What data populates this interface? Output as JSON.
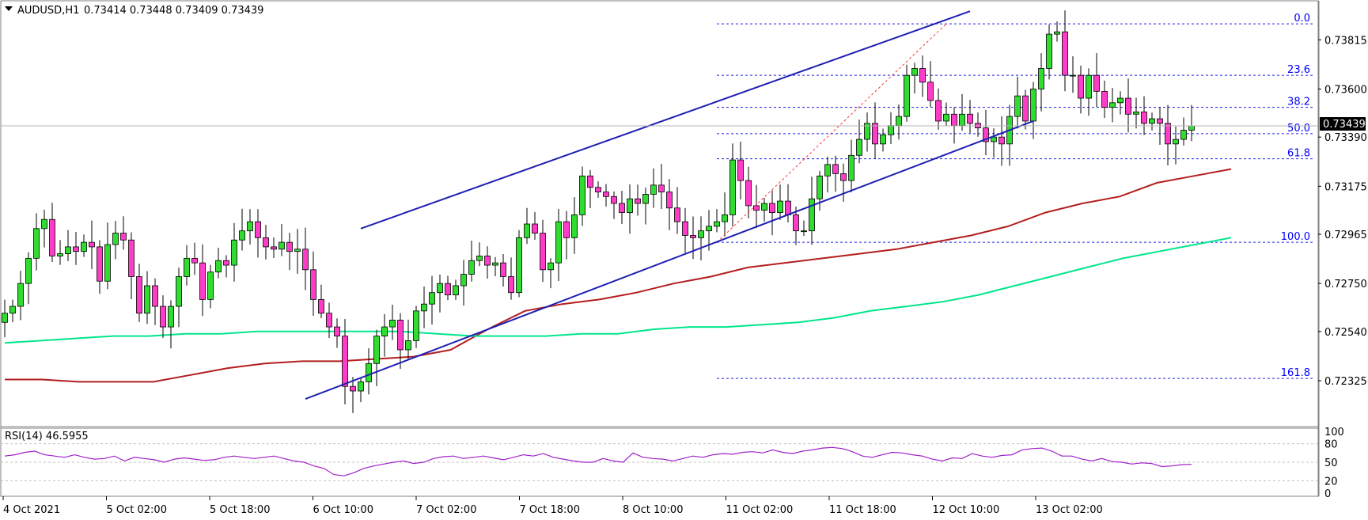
{
  "header": {
    "symbol": "AUDUSD,H1",
    "ohlc": "0.73414 0.73448 0.73409 0.73439"
  },
  "rsi_header": "RSI(14) 46.5955",
  "current_price_label": "0.73439",
  "colors": {
    "bull": "#2fdc2f",
    "bear": "#ff3cc8",
    "channel": "#1f1fb4",
    "ma100": "#b41e1e",
    "ma200": "#00e68c",
    "rsi": "#a020c8",
    "fib": "#1e1ee6",
    "fib_text": "#0000ff",
    "trend": "#ff3232"
  },
  "chart_data": [
    {
      "type": "candlestick",
      "title": "AUDUSD,H1",
      "ylim": [
        0.7219,
        0.7392
      ],
      "price_ticks": [
        "0.73815",
        "0.73600",
        "0.73390",
        "0.73175",
        "0.72965",
        "0.72750",
        "0.72540",
        "0.72325"
      ],
      "x_ticks": [
        "4 Oct 2021",
        "5 Oct 02:00",
        "5 Oct 18:00",
        "6 Oct 10:00",
        "7 Oct 02:00",
        "7 Oct 18:00",
        "8 Oct 10:00",
        "11 Oct 02:00",
        "11 Oct 18:00",
        "12 Oct 10:00",
        "13 Oct 02:00"
      ],
      "current_price": 0.73439,
      "candles_close": [
        0.7262,
        0.7265,
        0.7275,
        0.7286,
        0.7299,
        0.7303,
        0.7287,
        0.7288,
        0.7291,
        0.7289,
        0.7293,
        0.7291,
        0.7276,
        0.7292,
        0.7297,
        0.7294,
        0.7278,
        0.7262,
        0.7274,
        0.7265,
        0.7256,
        0.7265,
        0.7278,
        0.7286,
        0.7284,
        0.7268,
        0.728,
        0.7285,
        0.7283,
        0.7294,
        0.7298,
        0.7302,
        0.7295,
        0.7291,
        0.729,
        0.7293,
        0.7289,
        0.729,
        0.7281,
        0.7268,
        0.7262,
        0.7256,
        0.7252,
        0.723,
        0.7228,
        0.7232,
        0.724,
        0.7252,
        0.7256,
        0.7259,
        0.7246,
        0.725,
        0.7263,
        0.7266,
        0.7271,
        0.7275,
        0.727,
        0.7274,
        0.7279,
        0.7285,
        0.7287,
        0.7283,
        0.7284,
        0.7278,
        0.7271,
        0.7295,
        0.7301,
        0.7297,
        0.7281,
        0.7284,
        0.7302,
        0.7295,
        0.7305,
        0.7322,
        0.7317,
        0.7315,
        0.7313,
        0.731,
        0.7306,
        0.7312,
        0.731,
        0.7314,
        0.7318,
        0.7315,
        0.7308,
        0.7302,
        0.7296,
        0.7295,
        0.7298,
        0.73,
        0.7302,
        0.7305,
        0.7329,
        0.732,
        0.7309,
        0.7307,
        0.731,
        0.7306,
        0.7311,
        0.7305,
        0.7298,
        0.7298,
        0.7312,
        0.7322,
        0.7327,
        0.7323,
        0.732,
        0.7331,
        0.7338,
        0.7345,
        0.7336,
        0.734,
        0.7344,
        0.7348,
        0.7366,
        0.7369,
        0.7363,
        0.7355,
        0.7346,
        0.7349,
        0.7344,
        0.7349,
        0.7345,
        0.7343,
        0.7337,
        0.7339,
        0.7336,
        0.7348,
        0.7357,
        0.7346,
        0.736,
        0.7369,
        0.7384,
        0.7385,
        0.7366,
        0.7366,
        0.7356,
        0.7366,
        0.7359,
        0.7352,
        0.7354,
        0.7356,
        0.7349,
        0.735,
        0.7345,
        0.7347,
        0.7345,
        0.7336,
        0.7338,
        0.7342,
        0.73439
      ],
      "moving_averages": [
        {
          "period": 100,
          "values": [
            0.7233,
            0.7233,
            0.7232,
            0.7232,
            0.7232,
            0.7235,
            0.7238,
            0.724,
            0.7241,
            0.7241,
            0.7242,
            0.7243,
            0.7246,
            0.7255,
            0.7263,
            0.7266,
            0.7268,
            0.7271,
            0.7275,
            0.7278,
            0.7282,
            0.7284,
            0.7286,
            0.7288,
            0.729,
            0.7293,
            0.7296,
            0.73,
            0.7306,
            0.731,
            0.7313,
            0.7319,
            0.7322,
            0.7325
          ]
        },
        {
          "period": 200,
          "values": [
            0.7249,
            0.725,
            0.7251,
            0.7252,
            0.7252,
            0.7253,
            0.7253,
            0.7254,
            0.7254,
            0.7254,
            0.7254,
            0.7254,
            0.7253,
            0.7252,
            0.7252,
            0.7252,
            0.7253,
            0.7253,
            0.7255,
            0.7256,
            0.7256,
            0.7257,
            0.7258,
            0.726,
            0.7263,
            0.7265,
            0.7267,
            0.727,
            0.7274,
            0.7278,
            0.7282,
            0.7286,
            0.7289,
            0.7292,
            0.7295
          ]
        }
      ],
      "fibonacci": [
        {
          "level": "0.0",
          "price": 0.73885
        },
        {
          "level": "23.6",
          "price": 0.7366
        },
        {
          "level": "38.2",
          "price": 0.7352
        },
        {
          "level": "50.0",
          "price": 0.73405
        },
        {
          "level": "61.8",
          "price": 0.73295
        },
        {
          "level": "100.0",
          "price": 0.7293
        },
        {
          "level": "161.8",
          "price": 0.72335
        }
      ],
      "channel": {
        "lower": [
          [
            0.7223,
            0.7349
          ]
        ],
        "upper": [
          [
            0.7293,
            0.7394
          ]
        ]
      }
    },
    {
      "type": "line",
      "title": "RSI(14) 46.5955",
      "ylim": [
        0,
        100
      ],
      "y_ticks": [
        "100",
        "80",
        "50",
        "20",
        "0"
      ],
      "values": [
        60,
        62,
        66,
        68,
        62,
        60,
        58,
        62,
        58,
        55,
        56,
        60,
        52,
        58,
        56,
        54,
        50,
        55,
        57,
        55,
        53,
        54,
        58,
        60,
        58,
        56,
        58,
        60,
        56,
        52,
        50,
        44,
        40,
        30,
        28,
        33,
        40,
        44,
        47,
        50,
        52,
        48,
        50,
        56,
        59,
        60,
        56,
        58,
        60,
        57,
        54,
        58,
        62,
        60,
        64,
        58,
        55,
        52,
        50,
        50,
        56,
        52,
        50,
        65,
        58,
        56,
        55,
        52,
        56,
        60,
        58,
        62,
        64,
        63,
        66,
        67,
        65,
        70,
        66,
        64,
        68,
        70,
        73,
        74,
        72,
        67,
        60,
        58,
        62,
        66,
        65,
        62,
        60,
        55,
        52,
        57,
        56,
        64,
        60,
        58,
        61,
        62,
        70,
        72,
        73,
        68,
        60,
        60,
        55,
        52,
        56,
        51,
        50,
        47,
        49,
        48,
        43,
        44,
        46,
        46.6
      ]
    }
  ]
}
